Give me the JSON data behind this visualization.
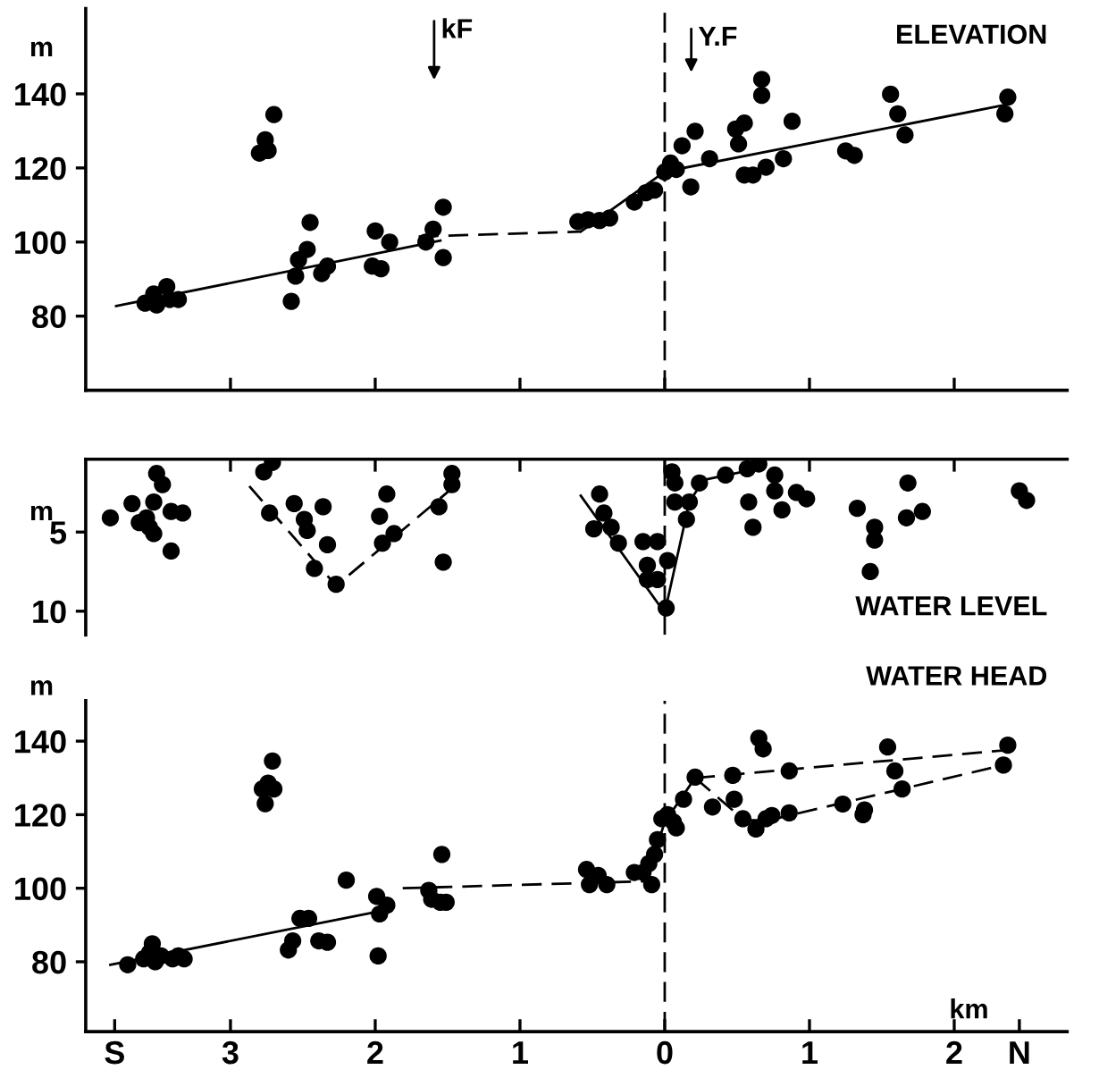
{
  "chart_data": [
    {
      "type": "scatter",
      "title": "ELEVATION",
      "ylabel": "m",
      "xlim": [
        -4.0,
        2.78
      ],
      "ylim": [
        60,
        163
      ],
      "xticks": [
        {
          "value": -3,
          "label": null
        },
        {
          "value": -2,
          "label": null
        },
        {
          "value": -1,
          "label": null
        },
        {
          "value": 0,
          "label": null
        },
        {
          "value": 1,
          "label": null
        },
        {
          "value": 2,
          "label": null
        }
      ],
      "yticks": [
        80,
        100,
        120,
        140
      ],
      "tick_labels": "y",
      "ref_lines": [
        {
          "axis": "x",
          "value": 0,
          "line_style": "dashed",
          "color": "#000000"
        }
      ],
      "annotations": [
        "kF",
        "Y.F"
      ],
      "series": [
        {
          "color": "#000000",
          "marker": "circle",
          "x": [
            -3.59,
            -3.53,
            -3.51,
            -3.44,
            -3.42,
            -3.36,
            -2.8,
            -2.76,
            -2.74,
            -2.7,
            -2.58,
            -2.55,
            -2.53,
            -2.47,
            -2.45,
            -2.37,
            -2.33,
            -2.02,
            -2.0,
            -1.96,
            -1.9,
            -1.65,
            -1.6,
            -1.53,
            -1.53,
            -0.6,
            -0.53,
            -0.45,
            -0.38,
            -0.21,
            -0.13,
            -0.07,
            0.0,
            0.04,
            0.08,
            0.12,
            0.21,
            0.18,
            0.31,
            0.49,
            0.55,
            0.51,
            0.55,
            0.61,
            0.67,
            0.67,
            0.7,
            0.82,
            0.88,
            1.25,
            1.31,
            1.56,
            1.61,
            1.66,
            2.37,
            2.35
          ],
          "values": [
            83.5,
            86,
            83,
            88,
            84.5,
            84.5,
            124,
            127.6,
            124.7,
            134.4,
            84,
            90.8,
            95.2,
            98,
            105.3,
            91.5,
            93.5,
            93.5,
            103,
            92.8,
            100,
            100,
            103.5,
            109.4,
            95.8,
            105.5,
            106,
            105.8,
            106.5,
            110.8,
            113.3,
            114,
            118.9,
            121.3,
            119.6,
            126,
            129.9,
            114.9,
            122.5,
            130.5,
            132.1,
            126.5,
            118.1,
            118.1,
            143.9,
            139.6,
            120.2,
            122.5,
            132.6,
            124.6,
            123.4,
            139.9,
            134.6,
            128.9,
            139.1,
            134.6
          ]
        },
        {
          "type": "line",
          "color": "#000000",
          "line_style": "solid",
          "x": [
            -3.79,
            -1.55
          ],
          "values": [
            82.7,
            100.4
          ]
        },
        {
          "type": "line",
          "color": "#000000",
          "line_style": "dashed",
          "x": [
            -1.7,
            -0.58
          ],
          "values": [
            101.5,
            102.8
          ]
        },
        {
          "type": "line",
          "color": "#000000",
          "line_style": "solid",
          "x": [
            -0.58,
            0.0,
            2.35
          ],
          "values": [
            102.8,
            119,
            137
          ]
        }
      ]
    },
    {
      "type": "scatter",
      "title": "WATER LEVEL",
      "ylabel": "m",
      "xlim": [
        -4.0,
        2.78
      ],
      "ylim": [
        11.5,
        0.4
      ],
      "xticks": [
        {
          "value": -3,
          "label": null
        },
        {
          "value": -2,
          "label": null
        },
        {
          "value": -1,
          "label": null
        },
        {
          "value": 0,
          "label": null
        },
        {
          "value": 1,
          "label": null
        },
        {
          "value": 2,
          "label": null
        }
      ],
      "yticks": [
        5,
        10
      ],
      "tick_labels": "y",
      "ref_lines": [
        {
          "axis": "x",
          "value": 0,
          "line_style": "dashed",
          "color": "#000000"
        }
      ],
      "series": [
        {
          "color": "#000000",
          "marker": "circle",
          "x": [
            -3.83,
            -3.68,
            -3.63,
            -3.56,
            -3.53,
            -3.51,
            -3.47,
            -3.53,
            -3.41,
            -3.33,
            -3.41,
            -3.58,
            -2.77,
            -2.71,
            -2.73,
            -2.56,
            -2.49,
            -2.47,
            -2.36,
            -2.33,
            -2.42,
            -2.27,
            -1.97,
            -1.92,
            -1.95,
            -1.87,
            -1.56,
            -1.47,
            -1.47,
            -1.53,
            -0.45,
            -0.42,
            -0.37,
            -0.49,
            -0.32,
            -0.15,
            -0.05,
            -0.12,
            -0.12,
            -0.05,
            0.02,
            0.01,
            0.05,
            0.07,
            0.07,
            0.17,
            0.15,
            0.24,
            0.42,
            0.57,
            0.65,
            0.58,
            0.61,
            0.76,
            0.76,
            0.81,
            0.91,
            0.98,
            1.33,
            1.45,
            1.45,
            1.42,
            1.68,
            1.78,
            1.67,
            2.45,
            2.5
          ],
          "values": [
            4.1,
            3.2,
            4.4,
            4.7,
            3.1,
            1.3,
            2.0,
            5.1,
            3.7,
            3.8,
            6.2,
            4.1,
            1.2,
            0.6,
            3.8,
            3.2,
            4.2,
            4.9,
            3.4,
            5.8,
            7.3,
            8.3,
            4.0,
            2.6,
            5.7,
            5.1,
            3.4,
            1.3,
            2.0,
            6.9,
            2.6,
            3.8,
            4.7,
            4.8,
            5.7,
            5.6,
            5.6,
            7.1,
            8.0,
            8.0,
            6.8,
            9.8,
            1.2,
            1.9,
            3.1,
            3.1,
            4.2,
            1.9,
            1.4,
            1.0,
            0.7,
            3.1,
            4.7,
            1.4,
            2.4,
            3.6,
            2.5,
            2.9,
            3.5,
            4.7,
            5.5,
            7.5,
            1.9,
            3.7,
            4.1,
            2.4,
            3.0
          ]
        },
        {
          "type": "line",
          "color": "#000000",
          "line_style": "dashed",
          "x": [
            -2.87,
            -2.27,
            -1.49
          ],
          "values": [
            2.1,
            8.4,
            2.4
          ]
        },
        {
          "type": "line",
          "color": "#000000",
          "line_style": "solid",
          "x": [
            -0.58,
            0.0,
            0.17,
            0.27,
            0.64
          ],
          "values": [
            2.7,
            10.1,
            3.1,
            1.7,
            1.0
          ]
        }
      ]
    },
    {
      "type": "scatter",
      "title": "WATER HEAD",
      "ylabel": "m",
      "xlabel": "km",
      "xlim": [
        -4.0,
        2.78
      ],
      "ylim": [
        61,
        151
      ],
      "xticks": [
        {
          "value": -3.8,
          "label": "S"
        },
        {
          "value": -3,
          "label": "3"
        },
        {
          "value": -2,
          "label": "2"
        },
        {
          "value": -1,
          "label": "1"
        },
        0,
        1,
        2,
        {
          "value": 2.45,
          "label": "N"
        }
      ],
      "yticks": [
        80,
        100,
        120,
        140
      ],
      "ref_lines": [
        {
          "axis": "x",
          "value": 0,
          "line_style": "dashed",
          "color": "#000000"
        }
      ],
      "series": [
        {
          "color": "#000000",
          "marker": "circle",
          "x": [
            -3.71,
            -3.6,
            -3.56,
            -3.54,
            -3.52,
            -3.48,
            -3.4,
            -3.36,
            -3.32,
            -2.78,
            -2.74,
            -2.7,
            -2.71,
            -2.76,
            -2.6,
            -2.57,
            -2.52,
            -2.46,
            -2.39,
            -2.33,
            -2.2,
            -1.99,
            -1.97,
            -1.92,
            -1.98,
            -1.63,
            -1.61,
            -1.55,
            -1.51,
            -1.54,
            -0.54,
            -0.52,
            -0.46,
            -0.4,
            -0.21,
            -0.15,
            -0.09,
            -0.11,
            -0.07,
            -0.05,
            -0.02,
            0.02,
            0.06,
            0.08,
            0.13,
            0.21,
            0.33,
            0.47,
            0.48,
            0.54,
            0.65,
            0.68,
            0.63,
            0.7,
            0.74,
            0.86,
            0.86,
            1.23,
            1.37,
            1.38,
            1.54,
            1.59,
            1.64,
            2.37,
            2.34
          ],
          "values": [
            79.2,
            80.8,
            82.4,
            84.9,
            80,
            81.6,
            80.8,
            81.6,
            80.8,
            127,
            128.6,
            127,
            134.6,
            123,
            83.2,
            85.7,
            91.8,
            91.8,
            85.7,
            85.3,
            102.2,
            97.8,
            93,
            95.4,
            81.6,
            99.4,
            97,
            96.2,
            96.2,
            109.2,
            105.1,
            101,
            103.5,
            101,
            104.3,
            104.3,
            101,
            106.7,
            109.2,
            113.2,
            118.9,
            120,
            118,
            116.4,
            124.2,
            130.2,
            122.1,
            130.7,
            124.2,
            118.9,
            140.8,
            137.9,
            116.1,
            118.9,
            119.8,
            120.5,
            131.9,
            122.9,
            120,
            121.3,
            138.4,
            131.9,
            127,
            138.9,
            133.5
          ]
        },
        {
          "type": "line",
          "color": "#000000",
          "line_style": "solid",
          "x": [
            -3.83,
            -1.96
          ],
          "values": [
            79.2,
            93.8
          ]
        },
        {
          "type": "line",
          "color": "#000000",
          "line_style": "dashed",
          "x": [
            -1.81,
            -0.13
          ],
          "values": [
            100,
            101.9
          ]
        },
        {
          "type": "line",
          "color": "#000000",
          "line_style": "solid",
          "x": [
            -0.13,
            0.0,
            0.21
          ],
          "values": [
            102,
            118,
            130
          ]
        },
        {
          "type": "line",
          "color": "#000000",
          "line_style": "dashed",
          "x": [
            0.21,
            2.37
          ],
          "values": [
            130,
            137.6
          ]
        },
        {
          "type": "line",
          "color": "#000000",
          "line_style": "dashed",
          "x": [
            0.21,
            0.55,
            0.72,
            2.34
          ],
          "values": [
            130,
            118.5,
            118.5,
            133.5
          ]
        }
      ]
    }
  ]
}
